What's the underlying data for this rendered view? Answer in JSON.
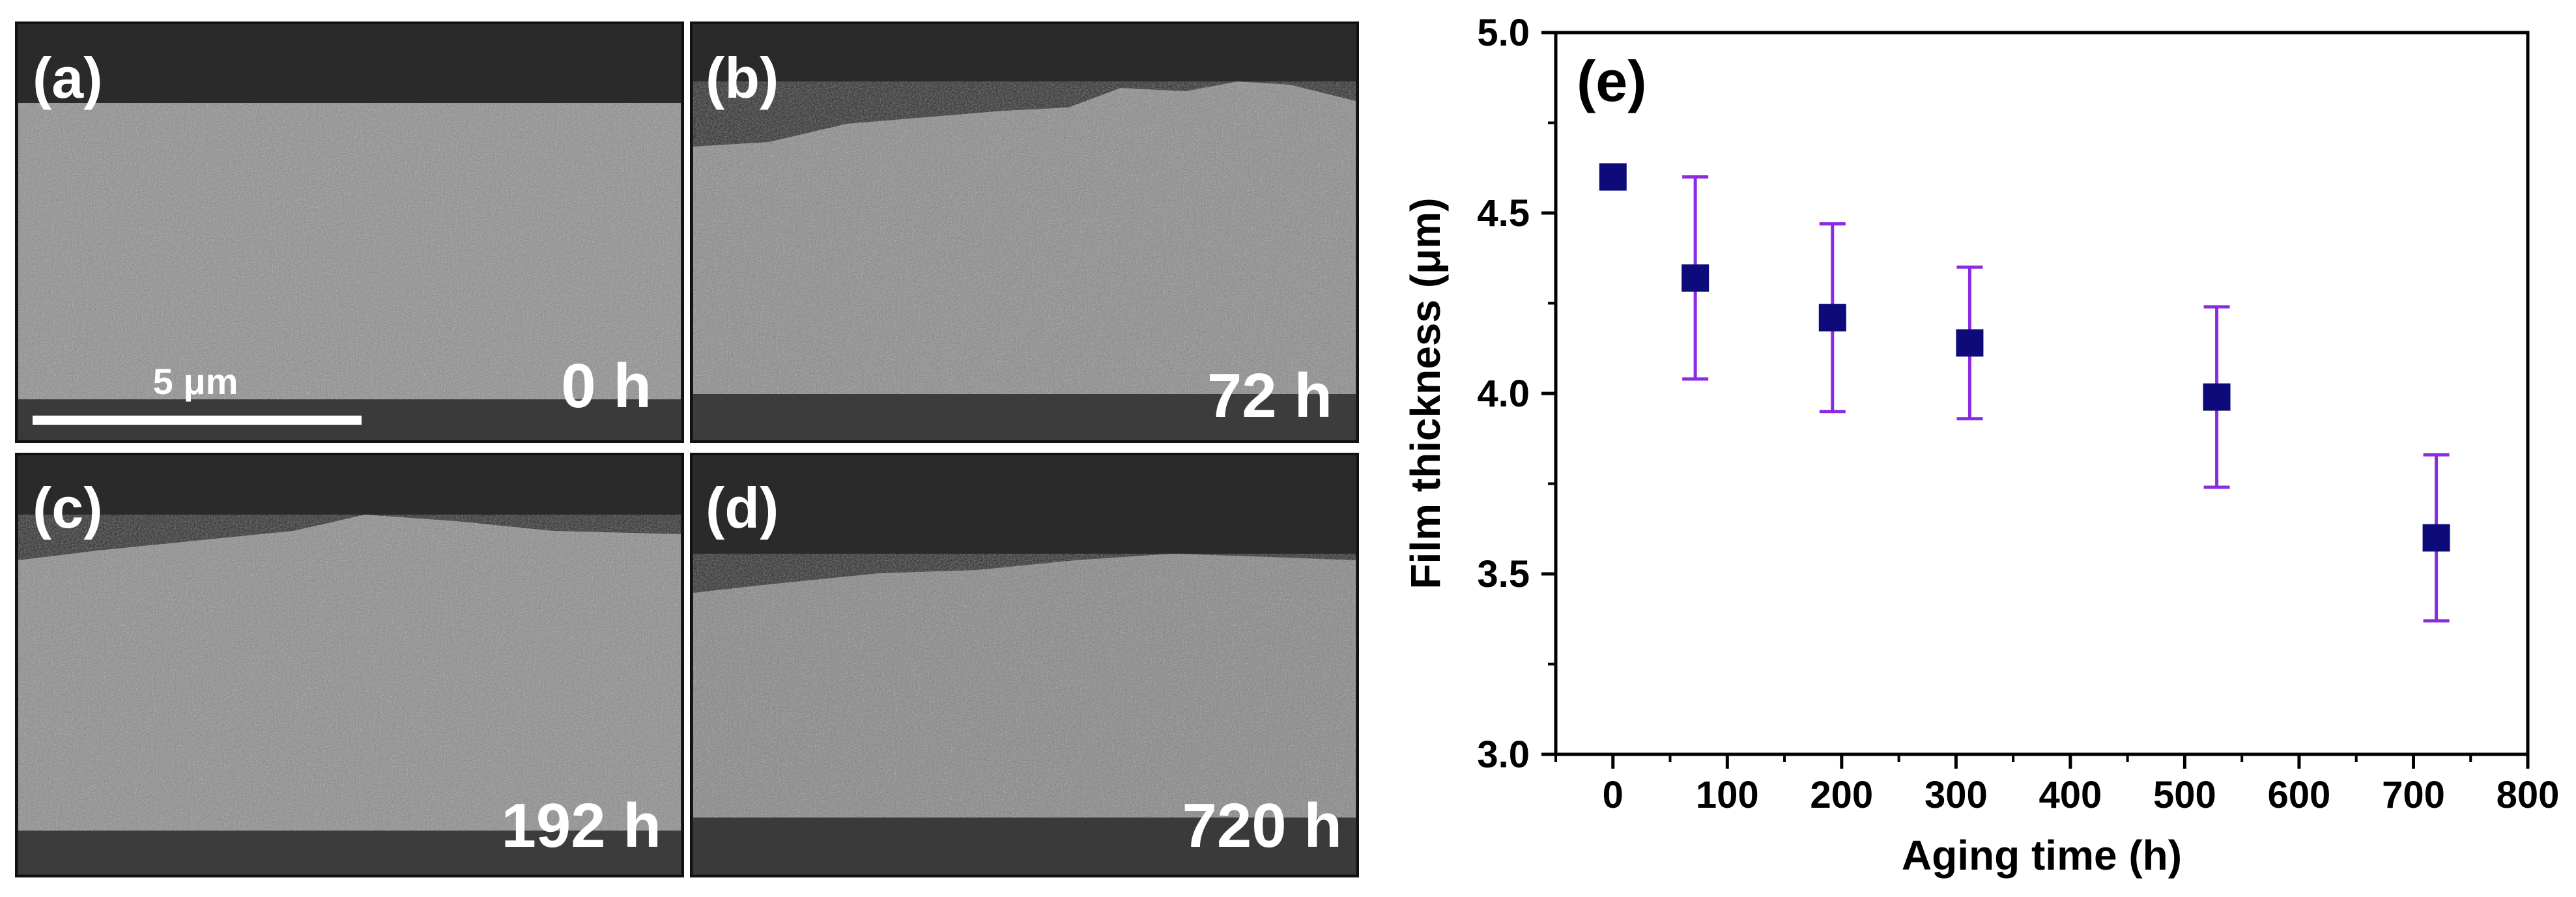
{
  "sem_panels": [
    {
      "label": "(a)",
      "time": "0 h",
      "scale_bar": "5 μm"
    },
    {
      "label": "(b)",
      "time": "72 h"
    },
    {
      "label": "(c)",
      "time": "192 h"
    },
    {
      "label": "(d)",
      "time": "720 h"
    }
  ],
  "colors": {
    "marker": "#0d0b7a",
    "error_bar": "#8a2be2",
    "sem_dark": "#2a2a2a",
    "sem_film": "#8c8c8c",
    "axis": "#000000"
  },
  "chart_data": {
    "type": "scatter",
    "panel_label": "(e)",
    "xlabel": "Aging time (h)",
    "ylabel": "Film thickness (μm)",
    "xlim": [
      -50,
      800
    ],
    "ylim": [
      3.0,
      5.0
    ],
    "x_ticks": [
      0,
      100,
      200,
      300,
      400,
      500,
      600,
      700,
      800
    ],
    "y_ticks": [
      3.0,
      3.5,
      4.0,
      4.5,
      5.0
    ],
    "x_tick_labels": [
      "0",
      "100",
      "200",
      "300",
      "400",
      "500",
      "600",
      "700",
      "800"
    ],
    "y_tick_labels": [
      "3.0",
      "3.5",
      "4.0",
      "4.5",
      "5.0"
    ],
    "grid": false,
    "marker": "square",
    "x": [
      0,
      72,
      192,
      312,
      528,
      720
    ],
    "y": [
      4.6,
      4.32,
      4.21,
      4.14,
      3.99,
      3.6
    ],
    "error": [
      0.03,
      0.28,
      0.26,
      0.21,
      0.25,
      0.23
    ]
  }
}
